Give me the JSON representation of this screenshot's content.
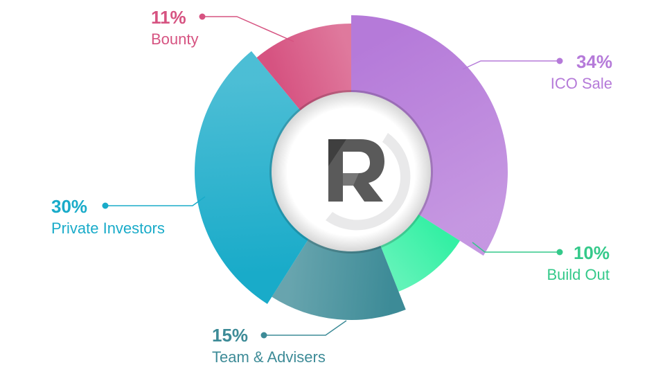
{
  "chart_data": {
    "type": "pie",
    "variant": "donut",
    "categories": [
      "ICO Sale",
      "Build Out",
      "Team & Advisers",
      "Private Investors",
      "Bounty"
    ],
    "values": [
      34,
      10,
      15,
      30,
      11
    ],
    "labels": [
      "34%",
      "10%",
      "15%",
      "30%",
      "11%"
    ],
    "colors": [
      "#b57ad9",
      "#34f0a4",
      "#3d8b97",
      "#19abc9",
      "#d65381"
    ],
    "legend": "none"
  },
  "center_logo": {
    "letter": "R",
    "icon": "r-logo-icon"
  }
}
